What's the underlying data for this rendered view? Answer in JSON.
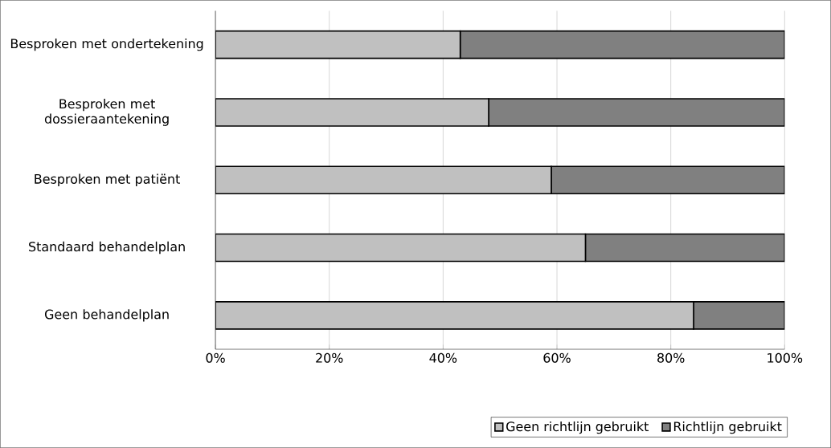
{
  "chart_data": {
    "type": "bar",
    "orientation": "horizontal",
    "stacked": true,
    "categories": [
      "Besproken met ondertekening",
      "Besproken met dossieraantekening",
      "Besproken met patiënt",
      "Standaard behandelplan",
      "Geen behandelplan"
    ],
    "series": [
      {
        "name": "Geen richtlijn gebruikt",
        "color": "#c0c0c0",
        "values": [
          43,
          48,
          59,
          65,
          84
        ]
      },
      {
        "name": "Richtlijn gebruikt",
        "color": "#808080",
        "values": [
          57,
          52,
          41,
          35,
          16
        ]
      }
    ],
    "xlim": [
      0,
      100
    ],
    "xticks": [
      {
        "value": 0,
        "label": "0%"
      },
      {
        "value": 20,
        "label": "20%"
      },
      {
        "value": 40,
        "label": "40%"
      },
      {
        "value": 60,
        "label": "60%"
      },
      {
        "value": 80,
        "label": "80%"
      },
      {
        "value": 100,
        "label": "100%"
      }
    ],
    "grid": "x",
    "legend": "bottom right"
  }
}
